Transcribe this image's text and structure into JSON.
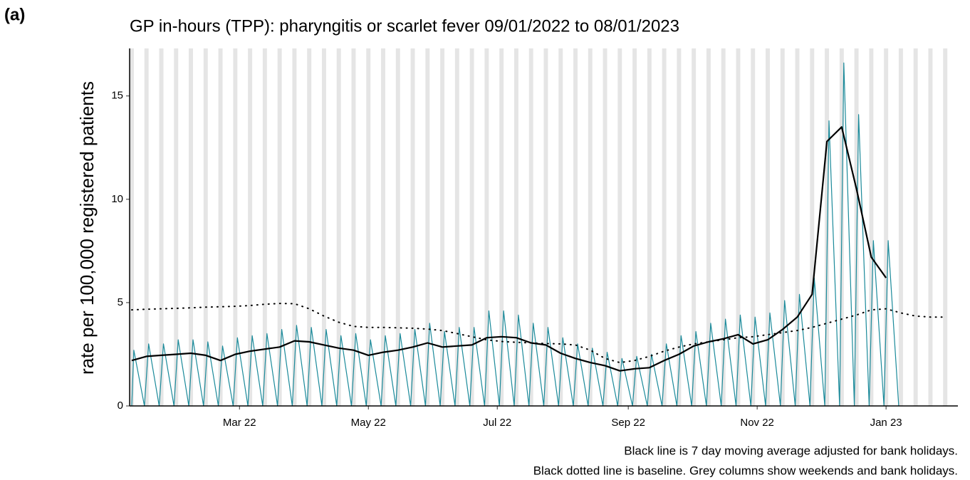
{
  "chart_data": {
    "type": "line",
    "panel_label": "(a)",
    "title": "GP in-hours (TPP): pharyngitis or scarlet fever 09/01/2022 to 08/01/2023",
    "ylabel": "rate per 100,000 registered patients",
    "notes": [
      "Black line is 7 day moving average adjusted for bank holidays.",
      "Black dotted line is baseline. Grey columns show weekends and bank holidays."
    ],
    "xlim": [
      "2022-01-08",
      "2023-02-04"
    ],
    "xticks": [
      {
        "value": "2022-03-01",
        "label": "Mar 22"
      },
      {
        "value": "2022-05-01",
        "label": "May 22"
      },
      {
        "value": "2022-07-01",
        "label": "Jul 22"
      },
      {
        "value": "2022-09-01",
        "label": "Sep 22"
      },
      {
        "value": "2022-11-01",
        "label": "Nov 22"
      },
      {
        "value": "2023-01-01",
        "label": "Jan 23"
      }
    ],
    "ylim": [
      0,
      17.3
    ],
    "yticks": [
      0,
      5,
      10,
      15
    ],
    "shaded_color": "#e5e5e5",
    "shaded": [
      "2022-01-08",
      "2022-01-15",
      "2022-01-22",
      "2022-01-29",
      "2022-02-05",
      "2022-02-12",
      "2022-02-19",
      "2022-02-26",
      "2022-03-05",
      "2022-03-12",
      "2022-03-19",
      "2022-03-26",
      "2022-04-02",
      "2022-04-09",
      "2022-04-16",
      "2022-04-23",
      "2022-04-30",
      "2022-05-07",
      "2022-05-14",
      "2022-05-21",
      "2022-05-28",
      "2022-06-04",
      "2022-06-11",
      "2022-06-18",
      "2022-06-25",
      "2022-07-02",
      "2022-07-09",
      "2022-07-16",
      "2022-07-23",
      "2022-07-30",
      "2022-08-06",
      "2022-08-13",
      "2022-08-20",
      "2022-08-27",
      "2022-09-03",
      "2022-09-10",
      "2022-09-17",
      "2022-09-24",
      "2022-10-01",
      "2022-10-08",
      "2022-10-15",
      "2022-10-22",
      "2022-10-29",
      "2022-11-05",
      "2022-11-12",
      "2022-11-19",
      "2022-11-26",
      "2022-12-03",
      "2022-12-10",
      "2022-12-17",
      "2022-12-24",
      "2022-12-31",
      "2023-01-07",
      "2023-01-14",
      "2023-01-21",
      "2023-01-28",
      "2023-02-04"
    ],
    "series": [
      {
        "color": "#1b8a9a",
        "style": "solid",
        "width": 1.2,
        "x": [
          "2022-01-09",
          "2022-01-10",
          "2022-01-15",
          "2022-01-17",
          "2022-01-22",
          "2022-01-24",
          "2022-01-29",
          "2022-01-31",
          "2022-02-05",
          "2022-02-07",
          "2022-02-12",
          "2022-02-14",
          "2022-02-19",
          "2022-02-21",
          "2022-02-26",
          "2022-02-28",
          "2022-03-05",
          "2022-03-07",
          "2022-03-12",
          "2022-03-14",
          "2022-03-19",
          "2022-03-21",
          "2022-03-26",
          "2022-03-28",
          "2022-04-02",
          "2022-04-04",
          "2022-04-09",
          "2022-04-11",
          "2022-04-16",
          "2022-04-18",
          "2022-04-23",
          "2022-04-25",
          "2022-04-30",
          "2022-05-02",
          "2022-05-07",
          "2022-05-09",
          "2022-05-14",
          "2022-05-16",
          "2022-05-21",
          "2022-05-23",
          "2022-05-28",
          "2022-05-30",
          "2022-06-04",
          "2022-06-06",
          "2022-06-11",
          "2022-06-13",
          "2022-06-18",
          "2022-06-20",
          "2022-06-25",
          "2022-06-27",
          "2022-07-02",
          "2022-07-04",
          "2022-07-09",
          "2022-07-11",
          "2022-07-16",
          "2022-07-18",
          "2022-07-23",
          "2022-07-25",
          "2022-07-30",
          "2022-08-01",
          "2022-08-06",
          "2022-08-08",
          "2022-08-13",
          "2022-08-15",
          "2022-08-20",
          "2022-08-22",
          "2022-08-27",
          "2022-08-29",
          "2022-09-03",
          "2022-09-05",
          "2022-09-10",
          "2022-09-12",
          "2022-09-17",
          "2022-09-19",
          "2022-09-24",
          "2022-09-26",
          "2022-10-01",
          "2022-10-03",
          "2022-10-08",
          "2022-10-10",
          "2022-10-15",
          "2022-10-17",
          "2022-10-22",
          "2022-10-24",
          "2022-10-29",
          "2022-10-31",
          "2022-11-05",
          "2022-11-07",
          "2022-11-12",
          "2022-11-14",
          "2022-11-19",
          "2022-11-21",
          "2022-11-26",
          "2022-11-28",
          "2022-12-03",
          "2022-12-05",
          "2022-12-10",
          "2022-12-12",
          "2022-12-17",
          "2022-12-19",
          "2022-12-24",
          "2022-12-26",
          "2022-12-31",
          "2023-01-02",
          "2023-01-07"
        ],
        "values": [
          0,
          2.7,
          0,
          3.0,
          0,
          3.0,
          0,
          3.2,
          0,
          3.2,
          0,
          3.1,
          0,
          2.9,
          0,
          3.3,
          0,
          3.4,
          0,
          3.5,
          0,
          3.7,
          0,
          3.9,
          0,
          3.8,
          0,
          3.7,
          0,
          3.4,
          0,
          3.5,
          0,
          3.2,
          0,
          3.4,
          0,
          3.5,
          0,
          3.7,
          0,
          4.0,
          0,
          3.6,
          0,
          3.8,
          0,
          3.8,
          0,
          4.6,
          0,
          4.6,
          0,
          4.4,
          0,
          4.0,
          0,
          3.8,
          0,
          3.3,
          0,
          3.0,
          0,
          2.8,
          0,
          2.6,
          0,
          2.3,
          0,
          2.4,
          0,
          2.5,
          0,
          3.0,
          0,
          3.4,
          0,
          3.6,
          0,
          4.0,
          0,
          4.2,
          0,
          4.4,
          0,
          4.3,
          0,
          4.5,
          0,
          5.1,
          0,
          5.4,
          0,
          6.2,
          0,
          13.8,
          0,
          16.6,
          0,
          14.1,
          0,
          8.0,
          0,
          8.0,
          0
        ]
      },
      {
        "color": "#000000",
        "style": "solid",
        "width": 2.2,
        "x": [
          "2022-01-09",
          "2022-01-16",
          "2022-01-23",
          "2022-01-30",
          "2022-02-06",
          "2022-02-13",
          "2022-02-20",
          "2022-02-27",
          "2022-03-06",
          "2022-03-13",
          "2022-03-20",
          "2022-03-27",
          "2022-04-03",
          "2022-04-10",
          "2022-04-17",
          "2022-04-24",
          "2022-05-01",
          "2022-05-08",
          "2022-05-15",
          "2022-05-22",
          "2022-05-29",
          "2022-06-05",
          "2022-06-12",
          "2022-06-19",
          "2022-06-26",
          "2022-07-03",
          "2022-07-10",
          "2022-07-17",
          "2022-07-24",
          "2022-07-31",
          "2022-08-07",
          "2022-08-14",
          "2022-08-21",
          "2022-08-28",
          "2022-09-04",
          "2022-09-11",
          "2022-09-18",
          "2022-09-25",
          "2022-10-02",
          "2022-10-09",
          "2022-10-16",
          "2022-10-23",
          "2022-10-30",
          "2022-11-06",
          "2022-11-13",
          "2022-11-20",
          "2022-11-27",
          "2022-12-04",
          "2022-12-11",
          "2022-12-18",
          "2022-12-25",
          "2023-01-01"
        ],
        "values": [
          2.2,
          2.4,
          2.45,
          2.5,
          2.55,
          2.45,
          2.2,
          2.5,
          2.65,
          2.75,
          2.85,
          3.15,
          3.1,
          2.95,
          2.8,
          2.7,
          2.45,
          2.6,
          2.7,
          2.85,
          3.05,
          2.85,
          2.9,
          2.95,
          3.3,
          3.35,
          3.3,
          3.05,
          2.95,
          2.55,
          2.3,
          2.1,
          1.95,
          1.7,
          1.8,
          1.85,
          2.2,
          2.5,
          2.9,
          3.1,
          3.25,
          3.45,
          3.0,
          3.2,
          3.7,
          4.3,
          5.4,
          12.8,
          13.5,
          10.5,
          7.2,
          6.2
        ]
      },
      {
        "color": "#000000",
        "style": "dotted",
        "width": 2,
        "x": [
          "2022-01-09",
          "2022-01-16",
          "2022-01-23",
          "2022-01-30",
          "2022-02-06",
          "2022-02-13",
          "2022-02-20",
          "2022-02-27",
          "2022-03-06",
          "2022-03-13",
          "2022-03-20",
          "2022-03-27",
          "2022-04-03",
          "2022-04-10",
          "2022-04-17",
          "2022-04-24",
          "2022-05-01",
          "2022-05-08",
          "2022-05-15",
          "2022-05-22",
          "2022-05-29",
          "2022-06-05",
          "2022-06-12",
          "2022-06-19",
          "2022-06-26",
          "2022-07-03",
          "2022-07-10",
          "2022-07-17",
          "2022-07-24",
          "2022-07-31",
          "2022-08-07",
          "2022-08-14",
          "2022-08-21",
          "2022-08-28",
          "2022-09-04",
          "2022-09-11",
          "2022-09-18",
          "2022-09-25",
          "2022-10-02",
          "2022-10-09",
          "2022-10-16",
          "2022-10-23",
          "2022-10-30",
          "2022-11-06",
          "2022-11-13",
          "2022-11-20",
          "2022-11-27",
          "2022-12-04",
          "2022-12-11",
          "2022-12-18",
          "2022-12-25",
          "2023-01-01",
          "2023-01-08",
          "2023-01-15",
          "2023-01-22",
          "2023-01-29"
        ],
        "values": [
          4.65,
          4.68,
          4.7,
          4.72,
          4.75,
          4.78,
          4.8,
          4.82,
          4.86,
          4.92,
          4.96,
          4.95,
          4.7,
          4.35,
          4.05,
          3.85,
          3.8,
          3.8,
          3.78,
          3.76,
          3.72,
          3.65,
          3.5,
          3.35,
          3.2,
          3.12,
          3.08,
          3.05,
          3.02,
          3.0,
          2.95,
          2.7,
          2.3,
          2.1,
          2.2,
          2.4,
          2.65,
          2.85,
          3.0,
          3.1,
          3.2,
          3.3,
          3.35,
          3.45,
          3.55,
          3.65,
          3.8,
          4.0,
          4.2,
          4.4,
          4.65,
          4.7,
          4.5,
          4.35,
          4.3,
          4.3
        ]
      }
    ]
  }
}
